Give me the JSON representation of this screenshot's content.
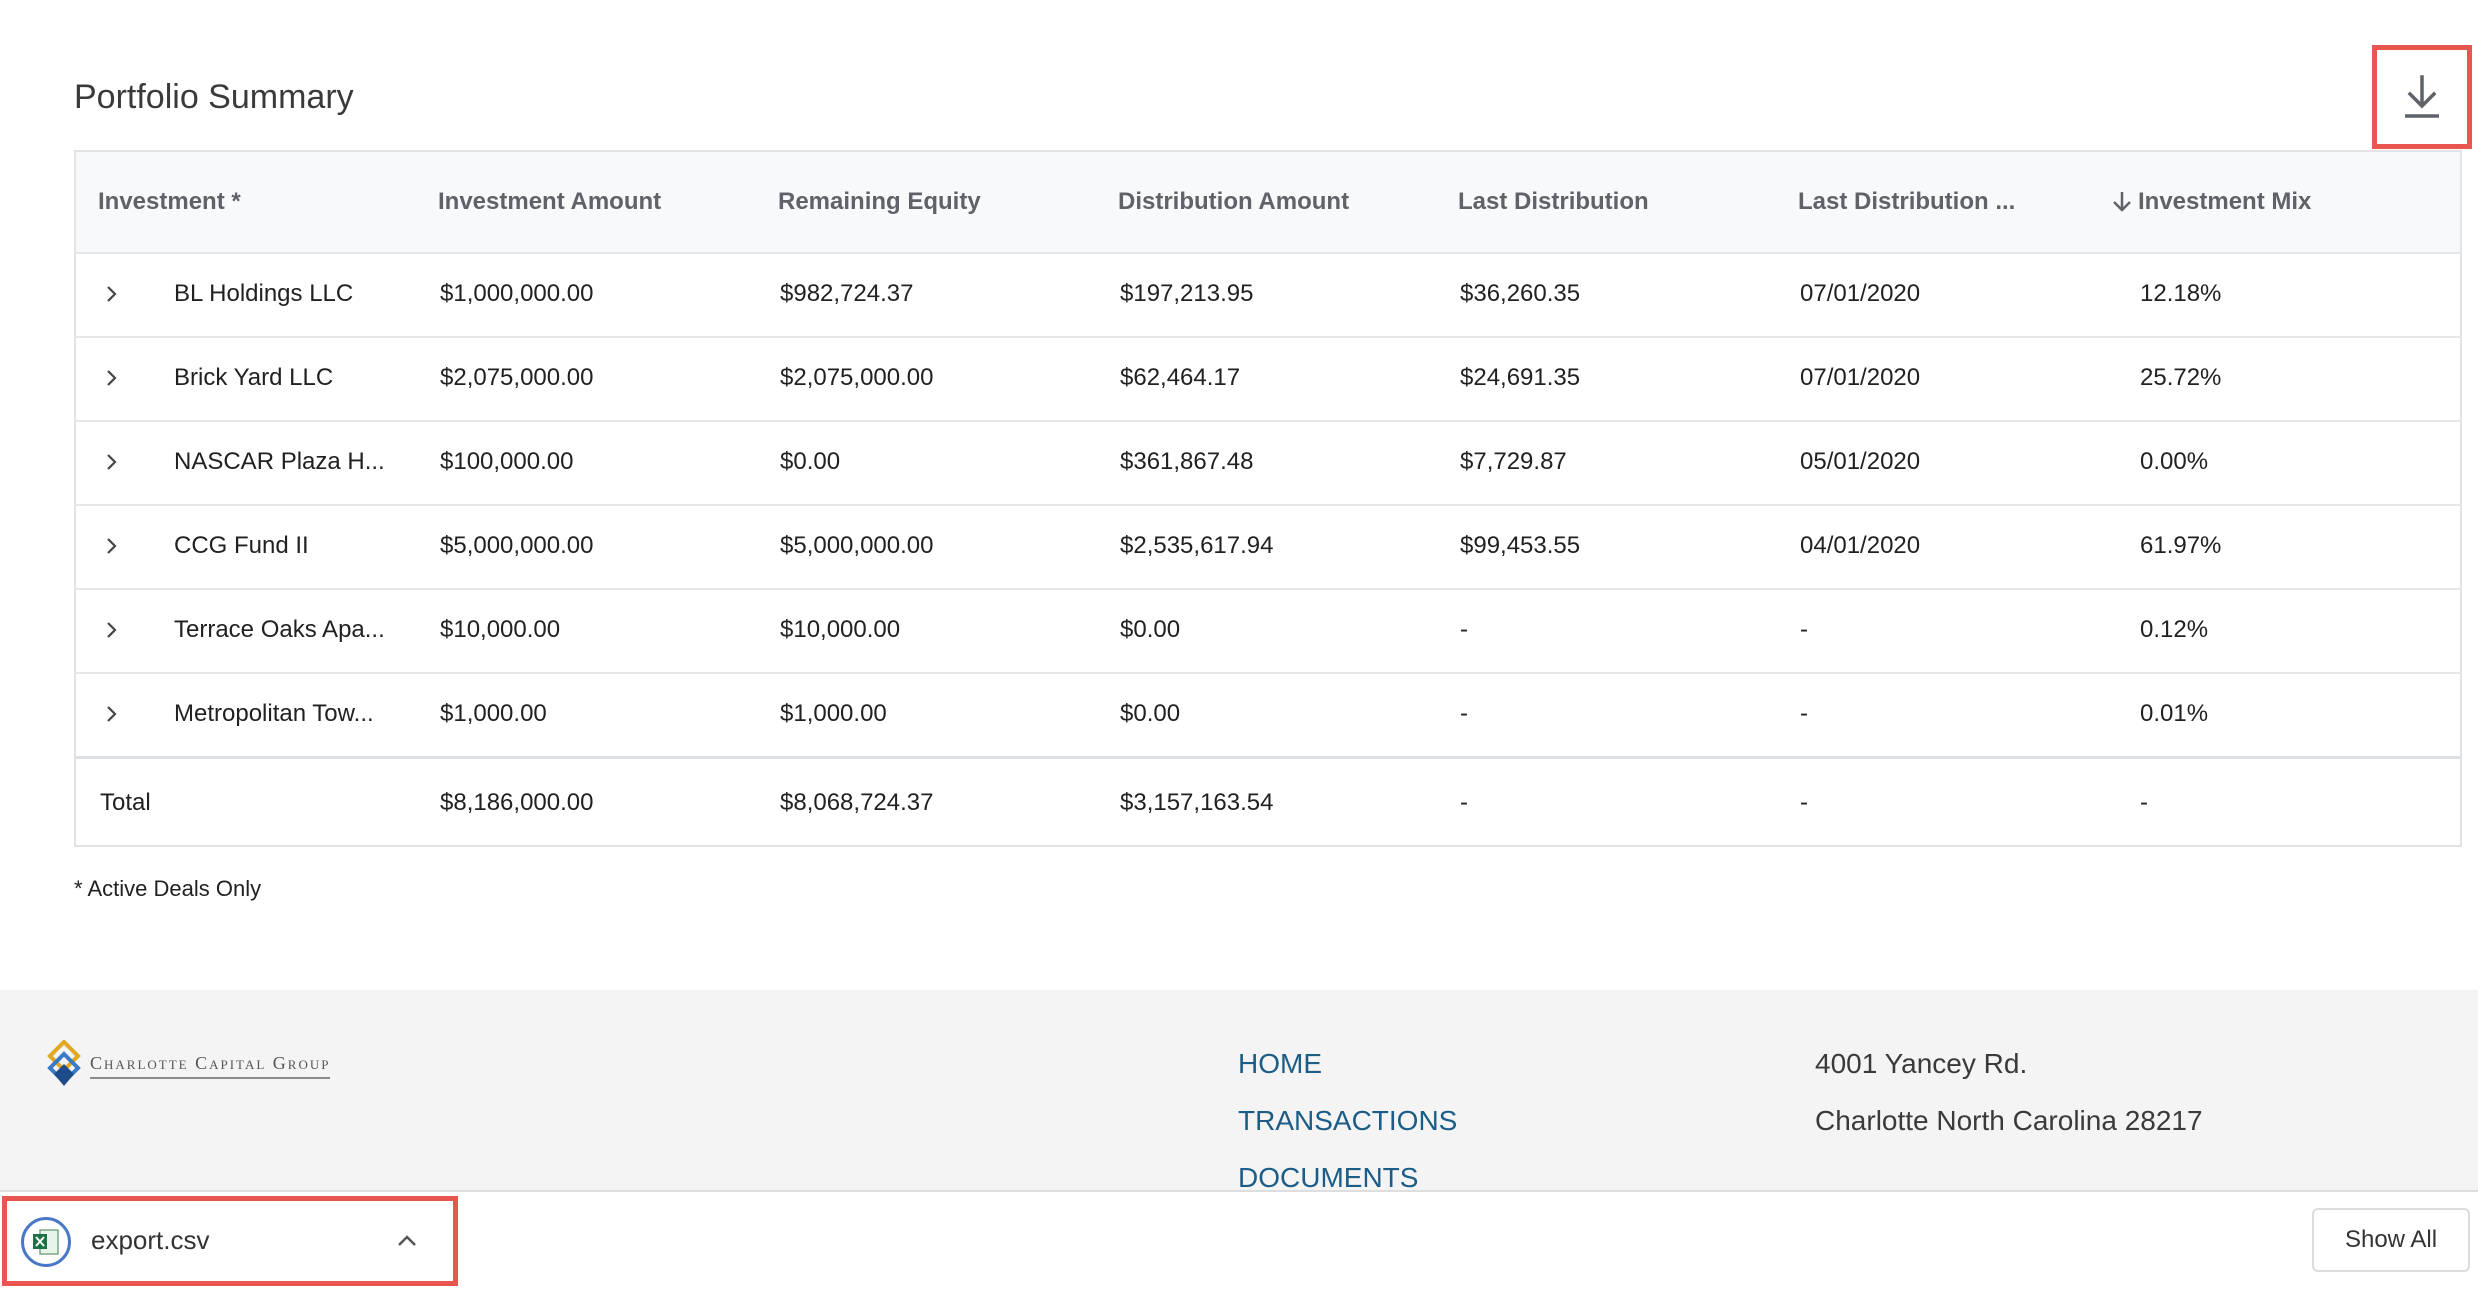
{
  "page": {
    "title": "Portfolio Summary"
  },
  "toolbar": {
    "download_icon": "download-icon"
  },
  "table": {
    "headers": [
      "Investment *",
      "Investment Amount",
      "Remaining Equity",
      "Distribution Amount",
      "Last Distribution",
      "Last Distribution ...",
      "Investment Mix"
    ],
    "sort_icon": "arrow-down-icon",
    "rows": [
      {
        "name": "BL Holdings LLC",
        "investment_amount": "$1,000,000.00",
        "remaining_equity": "$982,724.37",
        "distribution_amount": "$197,213.95",
        "last_distribution": "$36,260.35",
        "last_distribution_date": "07/01/2020",
        "investment_mix": "12.18%"
      },
      {
        "name": "Brick Yard LLC",
        "investment_amount": "$2,075,000.00",
        "remaining_equity": "$2,075,000.00",
        "distribution_amount": "$62,464.17",
        "last_distribution": "$24,691.35",
        "last_distribution_date": "07/01/2020",
        "investment_mix": "25.72%"
      },
      {
        "name": "NASCAR Plaza H...",
        "investment_amount": "$100,000.00",
        "remaining_equity": "$0.00",
        "distribution_amount": "$361,867.48",
        "last_distribution": "$7,729.87",
        "last_distribution_date": "05/01/2020",
        "investment_mix": "0.00%"
      },
      {
        "name": "CCG Fund II",
        "investment_amount": "$5,000,000.00",
        "remaining_equity": "$5,000,000.00",
        "distribution_amount": "$2,535,617.94",
        "last_distribution": "$99,453.55",
        "last_distribution_date": "04/01/2020",
        "investment_mix": "61.97%"
      },
      {
        "name": "Terrace Oaks Apa...",
        "investment_amount": "$10,000.00",
        "remaining_equity": "$10,000.00",
        "distribution_amount": "$0.00",
        "last_distribution": "-",
        "last_distribution_date": "-",
        "investment_mix": "0.12%"
      },
      {
        "name": "Metropolitan Tow...",
        "investment_amount": "$1,000.00",
        "remaining_equity": "$1,000.00",
        "distribution_amount": "$0.00",
        "last_distribution": "-",
        "last_distribution_date": "-",
        "investment_mix": "0.01%"
      }
    ],
    "total": {
      "label": "Total",
      "investment_amount": "$8,186,000.00",
      "remaining_equity": "$8,068,724.37",
      "distribution_amount": "$3,157,163.54",
      "last_distribution": "-",
      "last_distribution_date": "-",
      "investment_mix": "-"
    },
    "footnote": "* Active Deals Only"
  },
  "footer": {
    "logo_text": "Charlotte Capital Group",
    "nav": [
      "HOME",
      "TRANSACTIONS",
      "DOCUMENTS"
    ],
    "address": [
      "4001 Yancey Rd.",
      "Charlotte North Carolina 28217"
    ]
  },
  "downloads": {
    "file_name": "export.csv",
    "show_all": "Show All"
  },
  "colors": {
    "highlight": "#e9554f",
    "link": "#1c5d87",
    "header_bg": "#f8f9fb",
    "footer_bg": "#f4f4f4"
  }
}
